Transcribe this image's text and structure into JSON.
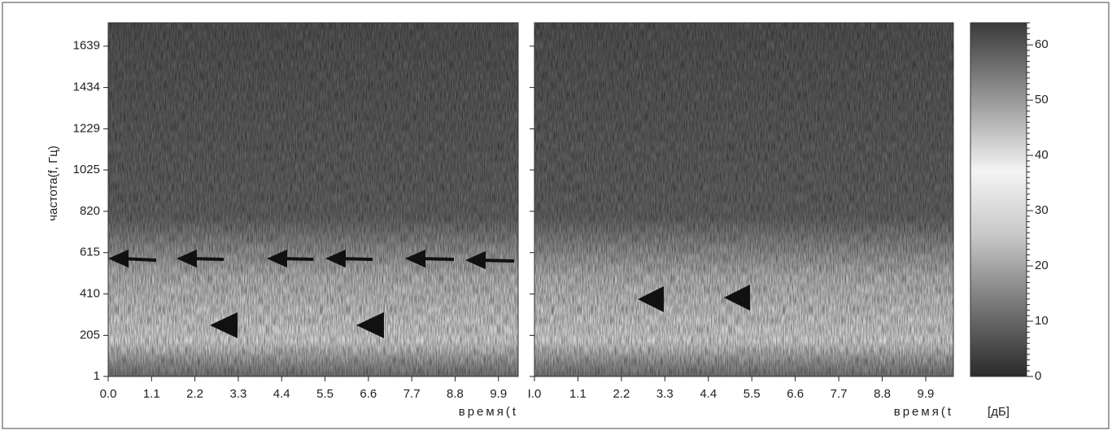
{
  "chart_data": [
    {
      "type": "heatmap",
      "ylabel": "частота(f, Гц)",
      "xlabel": "время(t",
      "xlim": [
        0,
        10.4
      ],
      "ylim": [
        1,
        1755
      ],
      "xticks": [
        {
          "value": 0,
          "label": "0.0"
        },
        1.1,
        2.2,
        3.3,
        4.4,
        5.5,
        6.6,
        7.7,
        8.8,
        9.9
      ],
      "yticks": [
        1,
        205,
        410,
        615,
        820,
        1025,
        1229,
        1434,
        1639
      ]
    },
    {
      "type": "heatmap",
      "xlabel": "время(t",
      "xlim": [
        0,
        10.6
      ],
      "ylim": [
        1,
        1755
      ],
      "xticks": [
        {
          "value": 0,
          "label": "I.0"
        },
        1.1,
        2.2,
        3.3,
        4.4,
        5.5,
        6.6,
        7.7,
        8.8,
        9.9
      ],
      "yticks": [
        1,
        205,
        410,
        615,
        820,
        1025,
        1229,
        1434,
        1639
      ]
    },
    {
      "type": "colorbar",
      "label": "[дБ]",
      "ylim": [
        0,
        64
      ],
      "yticks": [
        0,
        10,
        20,
        30,
        40,
        50,
        60
      ]
    }
  ]
}
